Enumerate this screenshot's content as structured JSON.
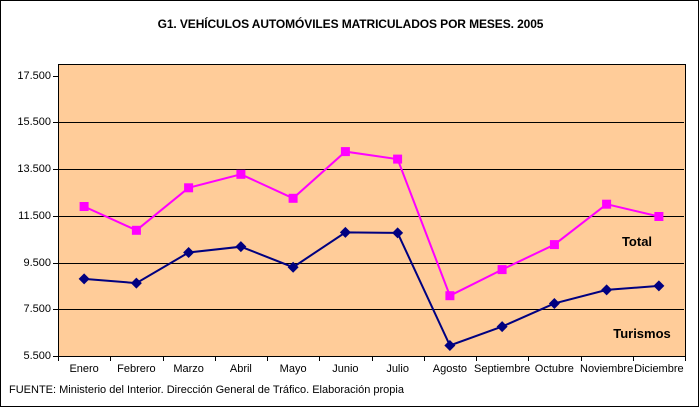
{
  "source_note": "FUENTE: Ministerio del Interior. Dirección General de Tráfico. Elaboración propia",
  "colors": {
    "plot_background": "#FFCC99",
    "axis_and_grid": "#000000",
    "total_series": "#FF00FF",
    "turismos_series": "#000080",
    "page_background": "#FFFFFF"
  },
  "chart_data": {
    "type": "line",
    "title": "G1. VEHÍCULOS AUTOMÓVILES MATRICULADOS POR MESES. 2005",
    "categories": [
      "Enero",
      "Febrero",
      "Marzo",
      "Abril",
      "Mayo",
      "Junio",
      "Julio",
      "Agosto",
      "Septiembre",
      "Octubre",
      "Noviembre",
      "Diciembre"
    ],
    "series": [
      {
        "name": "Total",
        "color": "#FF00FF",
        "marker": "square",
        "values": [
          11900,
          10880,
          12700,
          13280,
          12250,
          14250,
          13930,
          8080,
          9200,
          10270,
          12000,
          11470
        ]
      },
      {
        "name": "Turismos",
        "color": "#000080",
        "marker": "diamond",
        "values": [
          8800,
          8620,
          9930,
          10180,
          9300,
          10790,
          10770,
          5950,
          6760,
          7750,
          8330,
          8500
        ]
      }
    ],
    "xlabel": "",
    "ylabel": "",
    "ylim": [
      5500,
      18000
    ],
    "ytick_interval": 2000,
    "ytick_labels": [
      "17.500",
      "15.500",
      "13.500",
      "11.500",
      "9.500",
      "7.500",
      "5.500"
    ],
    "grid": true,
    "legend_position": "labels-inside-plot"
  }
}
